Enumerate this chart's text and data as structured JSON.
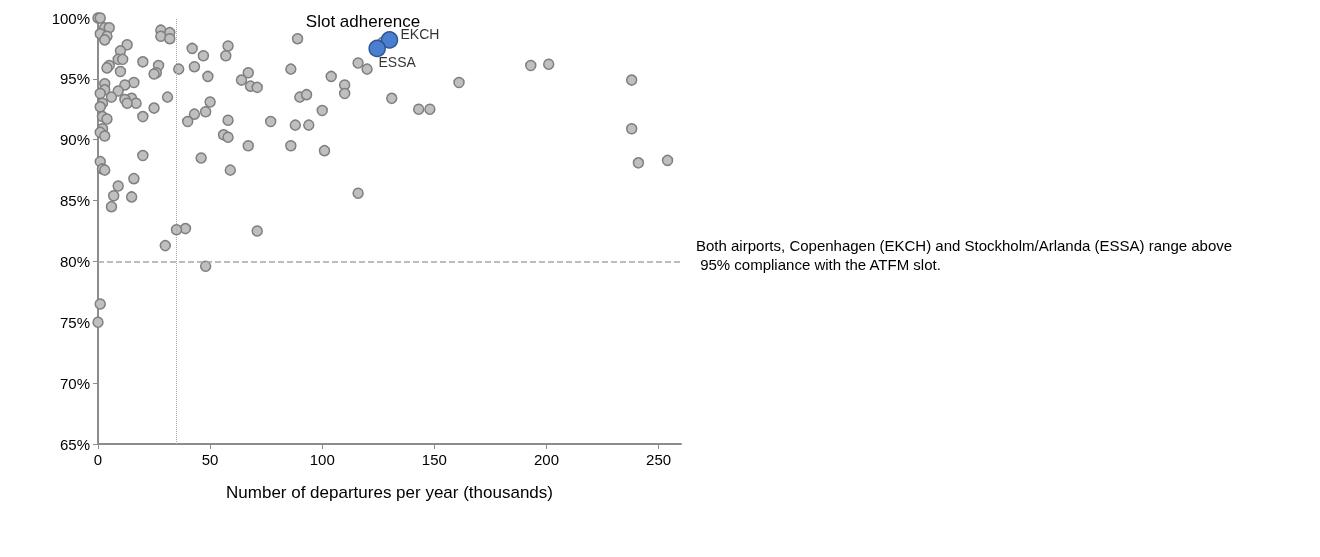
{
  "chart_data": {
    "type": "scatter",
    "title": "Slot adherence",
    "xlabel": "Number of departures per year (thousands)",
    "xlim": [
      0,
      260
    ],
    "xticks": [
      0,
      50,
      100,
      150,
      200,
      250
    ],
    "ylim": [
      65,
      100
    ],
    "yticks": [
      {
        "value": 65,
        "label": "65%"
      },
      {
        "value": 70,
        "label": "70%"
      },
      {
        "value": 75,
        "label": "75%"
      },
      {
        "value": 80,
        "label": "80%"
      },
      {
        "value": 85,
        "label": "85%"
      },
      {
        "value": 90,
        "label": "90%"
      },
      {
        "value": 95,
        "label": "95%"
      },
      {
        "value": 100,
        "label": "100%"
      }
    ],
    "grid": false,
    "marker": "circle",
    "series": [
      {
        "color": "#bfbfbf",
        "x": [
          0,
          1,
          3,
          5,
          1,
          4,
          3,
          28,
          32,
          28,
          32,
          89,
          127,
          13,
          10,
          42,
          58,
          47,
          57,
          9,
          11,
          20,
          27,
          43,
          36,
          86,
          116,
          120,
          5,
          4,
          10,
          26,
          25,
          49,
          67,
          104,
          64,
          193,
          201,
          161,
          238,
          3,
          16,
          12,
          110,
          68,
          71,
          3,
          9,
          15,
          12,
          1,
          6,
          110,
          90,
          93,
          131,
          17,
          13,
          31,
          50,
          2,
          1,
          25,
          43,
          48,
          100,
          143,
          148,
          2,
          4,
          20,
          40,
          58,
          77,
          88,
          94,
          2,
          1,
          3,
          56,
          58,
          67,
          86,
          101,
          238,
          20,
          46,
          1,
          254,
          241,
          2,
          3,
          59,
          16,
          9,
          7,
          15,
          6,
          116,
          39,
          35,
          71,
          30,
          48,
          1,
          0
        ],
        "values": [
          100,
          100,
          99.2,
          99.2,
          98.7,
          98.5,
          98.2,
          99.0,
          98.8,
          98.5,
          98.3,
          98.3,
          98.0,
          97.8,
          97.3,
          97.5,
          97.7,
          96.9,
          96.9,
          96.6,
          96.6,
          96.4,
          96.1,
          96.0,
          95.8,
          95.8,
          96.3,
          95.8,
          96.1,
          95.9,
          95.6,
          95.5,
          95.4,
          95.2,
          95.5,
          95.2,
          94.9,
          96.1,
          96.2,
          94.7,
          94.9,
          94.6,
          94.7,
          94.5,
          94.5,
          94.4,
          94.3,
          94.1,
          94.0,
          93.4,
          93.3,
          93.8,
          93.5,
          93.8,
          93.5,
          93.7,
          93.4,
          93.0,
          93.0,
          93.5,
          93.1,
          93.0,
          92.7,
          92.6,
          92.1,
          92.3,
          92.4,
          92.5,
          92.5,
          91.9,
          91.7,
          91.9,
          91.5,
          91.6,
          91.5,
          91.2,
          91.2,
          90.9,
          90.6,
          90.3,
          90.4,
          90.2,
          89.5,
          89.5,
          89.1,
          90.9,
          88.7,
          88.5,
          88.2,
          88.3,
          88.1,
          87.6,
          87.5,
          87.5,
          86.8,
          86.2,
          85.4,
          85.3,
          84.5,
          85.6,
          82.7,
          82.6,
          82.5,
          81.3,
          79.6,
          76.5,
          75.0
        ]
      },
      {
        "color": "#4a7fcf",
        "x": [
          130,
          124.5
        ],
        "values": [
          98.2,
          97.5
        ]
      }
    ],
    "ref_lines": [
      {
        "axis": "x",
        "value": 35,
        "color": "#a6a6a6",
        "line_style": "dotted"
      },
      {
        "axis": "y",
        "value": 80,
        "color": "#a6a6a6",
        "line_style": "dashed"
      }
    ],
    "annotations": [
      {
        "text": "EKCH",
        "x": 130,
        "y": 98.2
      },
      {
        "text": "ESSA",
        "x": 124.5,
        "y": 97.5
      },
      "Both airports, Copenhagen (EKCH) and Stockholm/Arlanda (ESSA) range above 95% compliance with the ATFM slot."
    ]
  }
}
